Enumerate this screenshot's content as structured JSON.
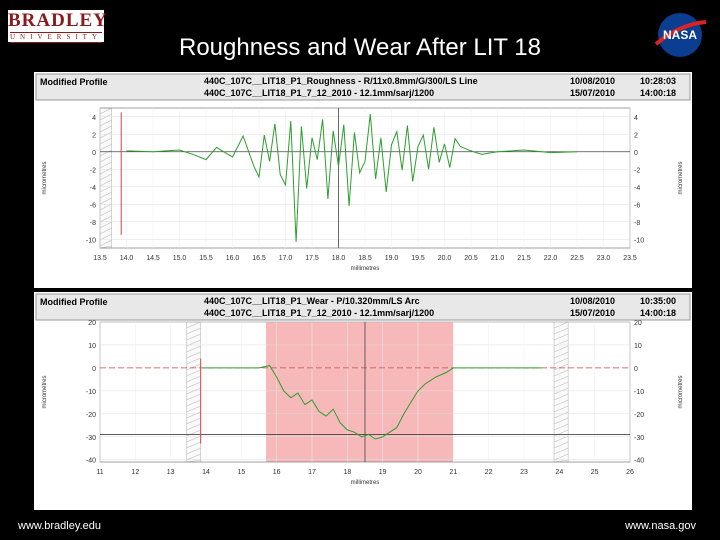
{
  "header": {
    "logo_main": "BRADLEY",
    "logo_sub": "UNIVERSITY",
    "nasa_logo": "NASA",
    "title": "Roughness and Wear After LIT 18"
  },
  "footer": {
    "left": "www.bradley.edu",
    "right": "www.nasa.gov"
  },
  "chart_data": [
    {
      "type": "line",
      "panel_label": "Modified Profile",
      "header_line1": "440C_107C__LIT18_P1_Roughness - R/11x0.8mm/G/300/LS Line",
      "header_line2": "440C_107C__LIT18_P1_7_12_2010 - 12.1mm/sarj/1200",
      "date1": "10/08/2010",
      "time1": "10:28:03",
      "date2": "15/07/2010",
      "time2": "14:00:18",
      "xlabel": "millimetres",
      "ylabel": "micrometres",
      "xlim": [
        13.5,
        23.5
      ],
      "ylim": [
        -11,
        5
      ],
      "xticks": [
        "13.5",
        "14.0",
        "14.5",
        "15.0",
        "15.5",
        "16.0",
        "16.5",
        "17.0",
        "17.5",
        "18.0",
        "18.5",
        "19.0",
        "19.5",
        "20.0",
        "20.5",
        "21.0",
        "21.5",
        "22.0",
        "22.5",
        "23.0",
        "23.5"
      ],
      "yticks": [
        "4",
        "2",
        "0",
        "-2",
        "-4",
        "-6",
        "-8",
        "-10"
      ],
      "grid": true,
      "series": [
        {
          "color": "#2e9e2e",
          "x": [
            14.0,
            14.5,
            15.0,
            15.3,
            15.5,
            15.7,
            16.0,
            16.2,
            16.4,
            16.5,
            16.6,
            16.7,
            16.8,
            16.9,
            17.0,
            17.1,
            17.2,
            17.3,
            17.4,
            17.5,
            17.6,
            17.7,
            17.8,
            17.9,
            18.0,
            18.1,
            18.2,
            18.3,
            18.4,
            18.5,
            18.6,
            18.7,
            18.8,
            18.9,
            19.0,
            19.1,
            19.2,
            19.3,
            19.4,
            19.5,
            19.6,
            19.7,
            19.8,
            19.9,
            20.0,
            20.1,
            20.2,
            20.3,
            20.5,
            20.7,
            21.0,
            21.5,
            22.0,
            22.5
          ],
          "y": [
            0.1,
            0.0,
            0.2,
            -0.4,
            -0.9,
            0.5,
            -0.6,
            1.8,
            -1.6,
            -2.9,
            1.9,
            -1.1,
            3.2,
            -2.6,
            -3.8,
            3.5,
            -10.3,
            2.9,
            -4.2,
            1.6,
            -0.9,
            3.7,
            -5.4,
            2.4,
            -1.7,
            3.1,
            -6.2,
            2.2,
            -2.4,
            -1.1,
            4.3,
            -3.1,
            1.6,
            -4.6,
            0.8,
            2.3,
            -2.1,
            3.0,
            -3.4,
            0.6,
            1.9,
            -2.0,
            2.8,
            -1.2,
            0.9,
            -1.8,
            1.5,
            0.6,
            0.1,
            -0.3,
            0.0,
            0.2,
            -0.1,
            0.0
          ]
        }
      ]
    },
    {
      "type": "line",
      "panel_label": "Modified Profile",
      "header_line1": "440C_107C__LIT18_P1_Wear - P/10.320mm/LS Arc",
      "header_line2": "440C_107C__LIT18_P1_7_12_2010 - 12.1mm/sarj/1200",
      "date1": "10/08/2010",
      "time1": "10:35:00",
      "date2": "15/07/2010",
      "time2": "14:00:18",
      "xlabel": "millimetres",
      "ylabel": "micrometres",
      "xlim": [
        11,
        26
      ],
      "ylim": [
        -41,
        20
      ],
      "xticks": [
        "11",
        "12",
        "13",
        "14",
        "15",
        "16",
        "17",
        "18",
        "19",
        "20",
        "21",
        "22",
        "23",
        "24",
        "25",
        "26"
      ],
      "yticks": [
        "20",
        "10",
        "0",
        "-10",
        "-20",
        "-30",
        "-40"
      ],
      "grid": true,
      "series": [
        {
          "color": "#2e9e2e",
          "x": [
            13.9,
            14.5,
            15.0,
            15.5,
            15.8,
            16.0,
            16.2,
            16.4,
            16.6,
            16.8,
            17.0,
            17.2,
            17.4,
            17.6,
            17.8,
            18.0,
            18.2,
            18.4,
            18.6,
            18.8,
            19.0,
            19.2,
            19.4,
            19.6,
            19.8,
            20.0,
            20.2,
            20.5,
            20.8,
            21.0,
            21.5,
            22.0,
            22.5,
            23.0,
            23.5
          ],
          "y": [
            0,
            0,
            0,
            0,
            1.0,
            -4,
            -10,
            -13,
            -11,
            -16,
            -14,
            -19,
            -21,
            -18,
            -24,
            -27,
            -28,
            -30,
            -29,
            -31,
            -30,
            -28,
            -26,
            -20,
            -15,
            -10,
            -7,
            -4,
            -2,
            0,
            0,
            0,
            0,
            0,
            0
          ]
        }
      ]
    }
  ]
}
